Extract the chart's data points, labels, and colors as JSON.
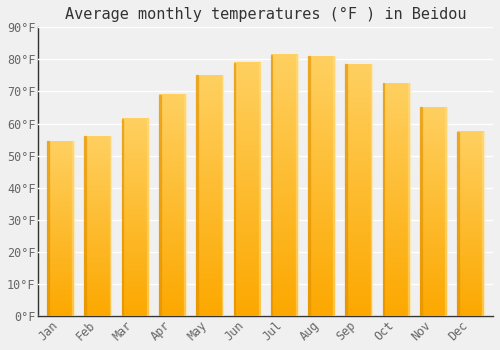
{
  "title": "Average monthly temperatures (°F ) in Beidou",
  "months": [
    "Jan",
    "Feb",
    "Mar",
    "Apr",
    "May",
    "Jun",
    "Jul",
    "Aug",
    "Sep",
    "Oct",
    "Nov",
    "Dec"
  ],
  "values": [
    54.5,
    56.0,
    61.5,
    69.0,
    75.0,
    79.0,
    81.5,
    81.0,
    78.5,
    72.5,
    65.0,
    57.5
  ],
  "bar_color_bottom": "#FCA800",
  "bar_color_top": "#FFD060",
  "bar_color_left_edge": "#E09000",
  "bar_color_right_edge": "#FFE090",
  "ylim": [
    0,
    90
  ],
  "yticks": [
    0,
    10,
    20,
    30,
    40,
    50,
    60,
    70,
    80,
    90
  ],
  "ytick_labels": [
    "0°F",
    "10°F",
    "20°F",
    "30°F",
    "40°F",
    "50°F",
    "60°F",
    "70°F",
    "80°F",
    "90°F"
  ],
  "background_color": "#f0f0f0",
  "grid_color": "#ffffff",
  "title_fontsize": 11,
  "tick_fontsize": 8.5,
  "tick_color": "#666666",
  "title_color": "#333333",
  "bar_width": 0.72,
  "left_spine_color": "#333333",
  "bottom_spine_color": "#333333"
}
